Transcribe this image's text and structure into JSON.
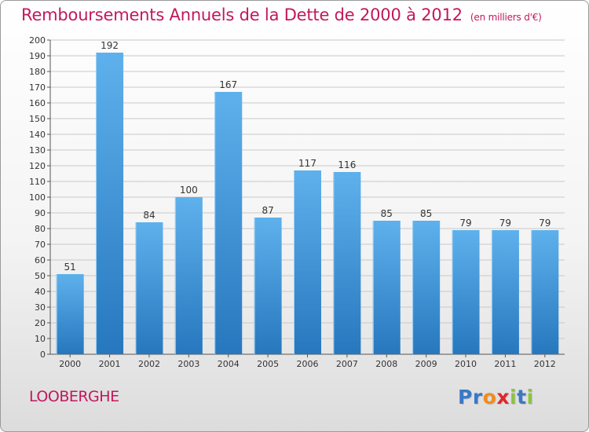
{
  "chart_data": {
    "type": "bar",
    "title": "Remboursements Annuels de la Dette de 2000 à 2012",
    "unit_label": "(en milliers d'€)",
    "categories": [
      "2000",
      "2001",
      "2002",
      "2003",
      "2004",
      "2005",
      "2006",
      "2007",
      "2008",
      "2009",
      "2010",
      "2011",
      "2012"
    ],
    "values": [
      51,
      192,
      84,
      100,
      167,
      87,
      117,
      116,
      85,
      85,
      79,
      79,
      79
    ],
    "ylim": [
      0,
      200
    ],
    "ytick_step": 10,
    "grid": true,
    "bar_color": "#3d8fd8",
    "grid_color": "#c8c8c8",
    "title_color": "#c2185b"
  },
  "footer": {
    "commune": "LOOBERGHE",
    "logo_letters": [
      {
        "ch": "P",
        "color": "#3a78c8"
      },
      {
        "ch": "r",
        "color": "#3a78c8"
      },
      {
        "ch": "o",
        "color": "#f28c1e"
      },
      {
        "ch": "x",
        "color": "#e0262e"
      },
      {
        "ch": "i",
        "color": "#8bc43f"
      },
      {
        "ch": "t",
        "color": "#3a78c8"
      },
      {
        "ch": "i",
        "color": "#8bc43f"
      }
    ]
  }
}
